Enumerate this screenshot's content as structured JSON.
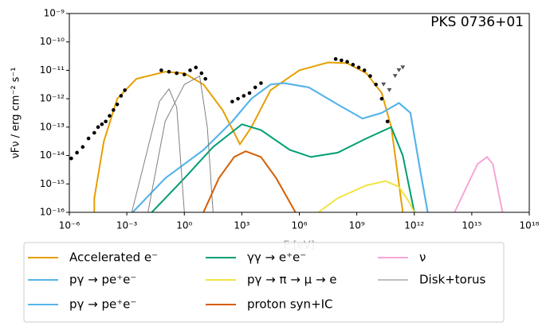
{
  "chart_data": {
    "type": "line",
    "annotation": "PKS 0736+01",
    "x_label": "E [eV]",
    "y_label": "νFν  / erg cm⁻² s⁻¹",
    "xlog": true,
    "ylog": true,
    "xlim": [
      1e-06,
      1e+18
    ],
    "ylim": [
      1e-16,
      1e-09
    ],
    "xticks": [
      {
        "value": 1e-06,
        "label": "10⁻⁶"
      },
      {
        "value": 0.001,
        "label": "10⁻³"
      },
      {
        "value": 1,
        "label": "10⁰"
      },
      {
        "value": 1000.0,
        "label": "10³"
      },
      {
        "value": 1000000.0,
        "label": "10⁶"
      },
      {
        "value": 1000000000.0,
        "label": "10⁹"
      },
      {
        "value": 1000000000000.0,
        "label": "10¹²"
      },
      {
        "value": 1000000000000000.0,
        "label": "10¹⁵"
      },
      {
        "value": 1e+18,
        "label": "10¹⁸"
      }
    ],
    "yticks": [
      {
        "value": 1e-16,
        "label": "10⁻¹⁶"
      },
      {
        "value": 1e-15,
        "label": "10⁻¹⁵"
      },
      {
        "value": 1e-14,
        "label": "10⁻¹⁴"
      },
      {
        "value": 1e-13,
        "label": "10⁻¹³"
      },
      {
        "value": 1e-12,
        "label": "10⁻¹²"
      },
      {
        "value": 1e-11,
        "label": "10⁻¹¹"
      },
      {
        "value": 1e-10,
        "label": "10⁻¹⁰"
      },
      {
        "value": 1e-09,
        "label": "10⁻⁹"
      }
    ],
    "legend": "lower center",
    "series": [
      {
        "name": "Accelerated e⁻",
        "color": "#e69f00",
        "x": [
          2e-05,
          2e-05,
          6.3e-05,
          0.000316,
          0.00316,
          0.1,
          1,
          10,
          100,
          800,
          3162,
          31623,
          1000000.0,
          31600000.0,
          316000000.0,
          3160000000.0,
          20000000000.0,
          63000000000.0,
          158000000000.0,
          250000000000.0
        ],
        "values": [
          1e-16,
          3.16e-16,
          3.16e-14,
          1e-12,
          5e-12,
          8.9e-12,
          7.9e-12,
          3.16e-12,
          4e-13,
          2.5e-14,
          1e-13,
          2e-12,
          1e-11,
          1.9e-11,
          1.78e-11,
          7.9e-12,
          1.58e-12,
          1e-13,
          1e-15,
          1e-16
        ]
      },
      {
        "name": "pγ → pe⁺e⁻",
        "color": "#56b4e9",
        "x": [
          0.002,
          0.1,
          10,
          316,
          3162,
          31623,
          158000.0,
          3160000.0,
          100000000.0,
          2000000000.0,
          20000000000.0,
          158000000000.0,
          630000000000.0,
          2000000000000.0,
          5000000000000.0
        ],
        "values": [
          1e-16,
          1.58e-15,
          1.58e-14,
          1.58e-13,
          1e-12,
          3.16e-12,
          3.55e-12,
          2.5e-12,
          6.3e-13,
          2e-13,
          3.16e-13,
          7.1e-13,
          3.16e-13,
          3.16e-15,
          1e-16
        ]
      },
      {
        "name": "pγ → pe⁺e⁻",
        "color": "#56b4e9",
        "x": [
          0.002,
          0.1,
          10,
          316,
          3162,
          31623,
          158000.0,
          3160000.0,
          100000000.0,
          2000000000.0,
          20000000000.0,
          158000000000.0,
          630000000000.0,
          2000000000000.0,
          5000000000000.0
        ],
        "values": [
          1e-16,
          1.58e-15,
          1.58e-14,
          1.58e-13,
          1e-12,
          3.16e-12,
          3.55e-12,
          2.5e-12,
          6.3e-13,
          2e-13,
          3.16e-13,
          7.1e-13,
          3.16e-13,
          3.16e-15,
          1e-16
        ]
      },
      {
        "name": "γγ → e⁺e⁻",
        "color": "#009e73",
        "x": [
          0.02,
          1,
          31.6,
          1000,
          10000.0,
          316000.0,
          4000000.0,
          100000000.0,
          3160000000.0,
          63000000000.0,
          250000000000.0,
          1000000000000.0
        ],
        "values": [
          1e-16,
          1.58e-15,
          2e-14,
          1.26e-13,
          7.9e-14,
          1.58e-14,
          8.9e-15,
          1.26e-14,
          4e-14,
          1e-13,
          1e-14,
          1e-16
        ]
      },
      {
        "name": "pγ → π → μ → e",
        "color": "#f0e442",
        "x": [
          10000000.0,
          100000000.0,
          3160000000.0,
          31600000000.0,
          158000000000.0,
          500000000000.0,
          1000000000000.0
        ],
        "values": [
          1e-16,
          3.16e-16,
          8.9e-16,
          1.26e-15,
          7.9e-16,
          2.5e-16,
          1e-16
        ]
      },
      {
        "name": "proton syn+IC",
        "color": "#d55e00",
        "x": [
          10,
          63,
          400,
          1585,
          10000.0,
          63000.0,
          630000.0
        ],
        "values": [
          1e-16,
          1.58e-15,
          8.9e-15,
          1.41e-14,
          8.9e-15,
          1.58e-15,
          1e-16
        ]
      },
      {
        "name": "ν",
        "color": "#f7a6d6",
        "x": [
          126000000000000.0,
          630000000000000.0,
          2000000000000000.0,
          6300000000000000.0,
          1.26e+16,
          4e+16
        ],
        "values": [
          1e-16,
          1e-15,
          5e-15,
          8.9e-15,
          5e-15,
          1e-16
        ]
      },
      {
        "name": "Disk+torus",
        "color": "#808080",
        "x": [
          0.0018,
          0.01,
          0.05,
          0.158,
          0.4,
          1,
          0.5,
          0.0126,
          0.1,
          1,
          6.3,
          15.8,
          31.6
        ],
        "values": [
          1e-16,
          1e-14,
          8e-13,
          2.2e-12,
          5e-13,
          1e-16,
          null,
          1e-16,
          1.6e-13,
          3.16e-12,
          6.3e-12,
          1e-13,
          1e-16
        ]
      }
    ],
    "points": {
      "color": "#000000",
      "x": [
        1.26e-06,
        2.5e-06,
        5e-06,
        1e-05,
        2e-05,
        3.16e-05,
        5e-05,
        7.9e-05,
        0.000126,
        0.0002,
        0.000316,
        0.0005,
        0.00079,
        0.063,
        0.158,
        0.4,
        1,
        2,
        4,
        7.9,
        12.6,
        316,
        631,
        1260,
        2510,
        5010,
        10000.0,
        79000000.0,
        158000000.0,
        316000000.0,
        630000000.0,
        1260000000.0,
        2500000000.0,
        5000000000.0,
        10000000000.0,
        20000000000.0,
        40000000000.0
      ],
      "values": [
        7.9e-15,
        1.26e-14,
        2e-14,
        4e-14,
        6.3e-14,
        1e-13,
        1.26e-13,
        1.58e-13,
        2.5e-13,
        4e-13,
        6.3e-13,
        1.26e-12,
        2e-12,
        1e-11,
        8.9e-12,
        7.9e-12,
        7.1e-12,
        1e-11,
        1.26e-11,
        7.9e-12,
        5e-12,
        7.9e-13,
        1e-12,
        1.26e-12,
        1.58e-12,
        2.5e-12,
        3.55e-12,
        2.5e-11,
        2.24e-11,
        2e-11,
        1.58e-11,
        1.26e-11,
        1e-11,
        6.3e-12,
        3.16e-12,
        1e-12,
        1.58e-13
      ]
    },
    "upper_limits": {
      "color": "#555555",
      "x": [
        25000000000.0,
        50000000000.0,
        100000000000.0,
        158000000000.0,
        250000000000.0
      ],
      "values": [
        3.16e-12,
        2e-12,
        6.3e-12,
        1e-11,
        1.26e-11
      ]
    }
  }
}
